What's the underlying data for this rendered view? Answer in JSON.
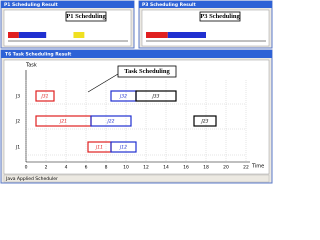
{
  "windows": [
    {
      "title": "P1 Scheduling Result",
      "callout": "P1 Scheduling",
      "xlim": [
        0,
        22
      ],
      "bars": [
        {
          "start": 0,
          "end": 2,
          "color": "#e02020"
        },
        {
          "start": 2,
          "end": 7,
          "color": "#2030d0"
        },
        {
          "start": 12,
          "end": 14,
          "color": "#f0e020"
        }
      ]
    },
    {
      "title": "P3 Scheduling Result",
      "callout": "P3 Scheduling",
      "xlim": [
        0,
        22
      ],
      "bars": [
        {
          "start": 0,
          "end": 4,
          "color": "#e02020"
        },
        {
          "start": 4,
          "end": 11,
          "color": "#2030d0"
        }
      ]
    }
  ],
  "main": {
    "title": "T6 Task Scheduling Result",
    "callout": "Task Scheduling",
    "y_label": "Task",
    "x_label": "Time",
    "xlim": [
      0,
      22
    ],
    "xticks": [
      0,
      2,
      4,
      6,
      8,
      10,
      12,
      14,
      16,
      18,
      20,
      22
    ],
    "rows": [
      {
        "label": "J3",
        "tasks": [
          {
            "label": "J31",
            "start": 1,
            "end": 2.8,
            "color": "#e02020"
          },
          {
            "label": "J32",
            "start": 8.5,
            "end": 11,
            "color": "#2030d0"
          },
          {
            "label": "J33",
            "start": 11,
            "end": 15,
            "color": "#000000"
          }
        ]
      },
      {
        "label": "J2",
        "tasks": [
          {
            "label": "J21",
            "start": 1,
            "end": 6.5,
            "color": "#e02020"
          },
          {
            "label": "J22",
            "start": 6.5,
            "end": 10.5,
            "color": "#2030d0"
          },
          {
            "label": "J23",
            "start": 16.8,
            "end": 19,
            "color": "#000000"
          }
        ]
      },
      {
        "label": "J1",
        "tasks": [
          {
            "label": "J11",
            "start": 6.2,
            "end": 8.5,
            "color": "#e02020"
          },
          {
            "label": "J12",
            "start": 8.5,
            "end": 11,
            "color": "#2030d0"
          }
        ]
      }
    ]
  },
  "status": "Java Applied Scheduler"
}
